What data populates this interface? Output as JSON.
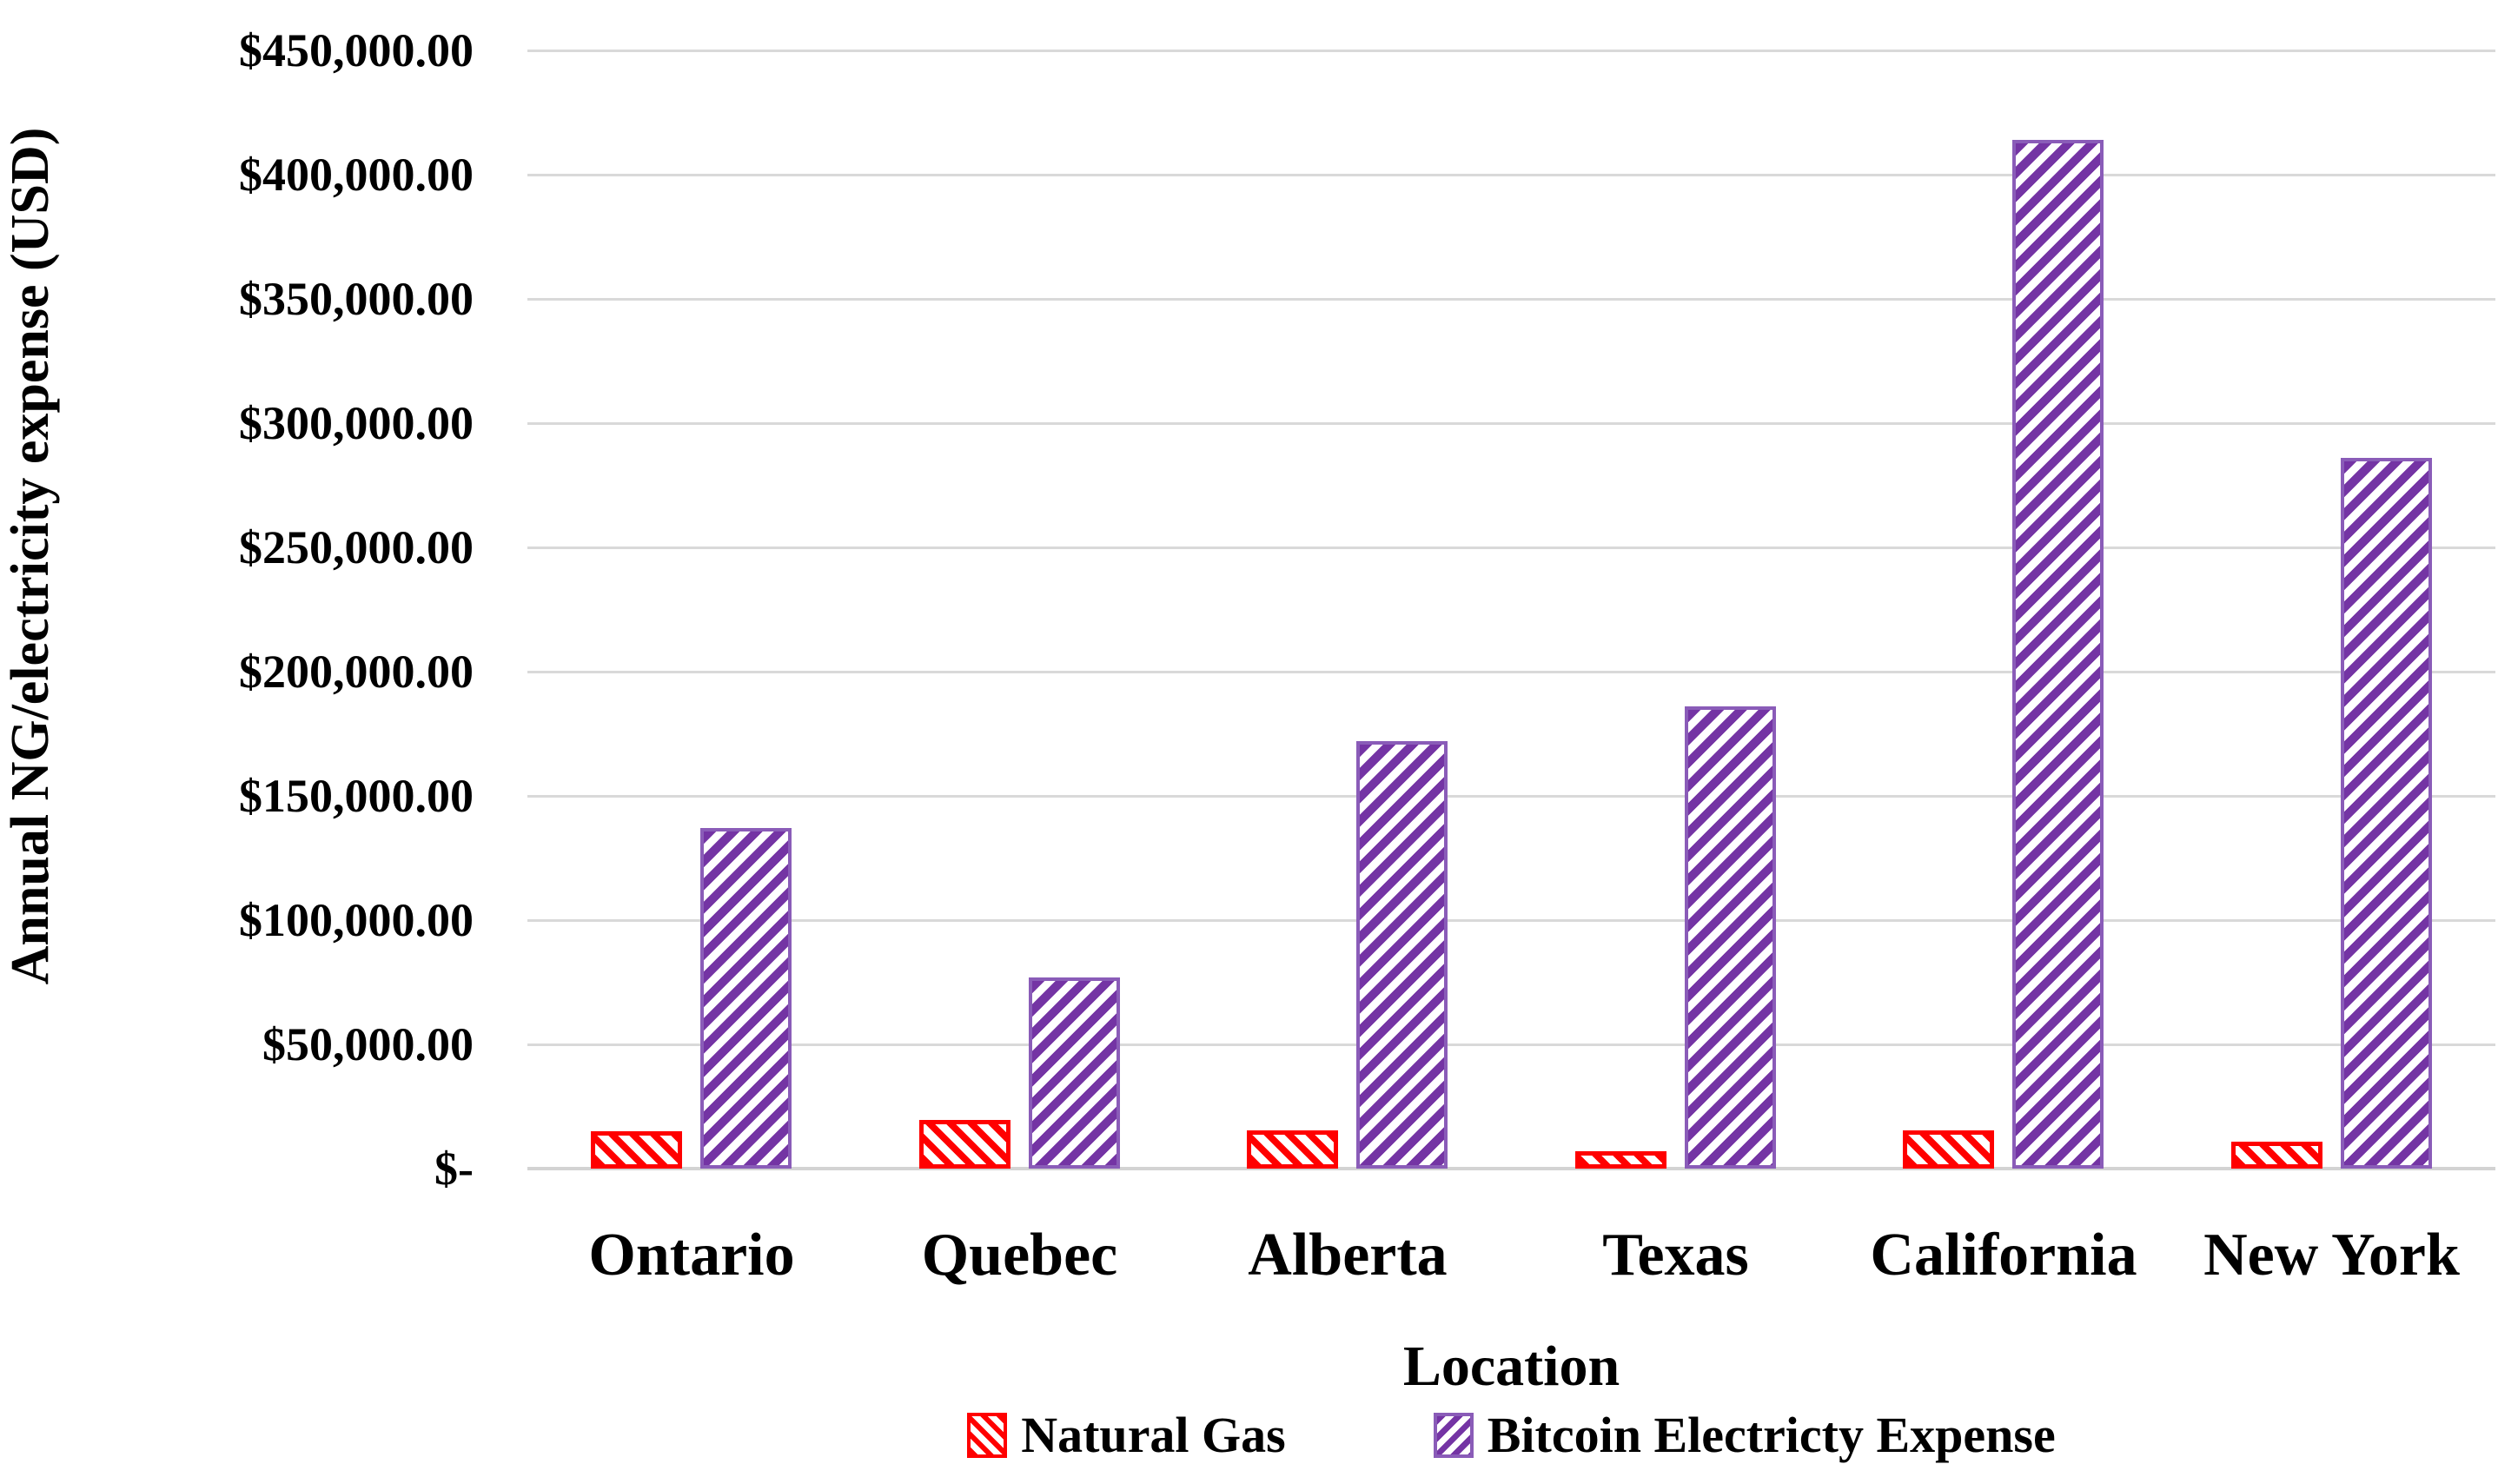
{
  "chart_data": {
    "type": "bar",
    "title": "",
    "xlabel": "Location",
    "ylabel": "Annual NG/electricity expense (USD)",
    "categories": [
      "Ontario",
      "Quebec",
      "Alberta",
      "Texas",
      "California",
      "New York"
    ],
    "series": [
      {
        "name": "Natural Gas",
        "color": "#ff0000",
        "hatch": "diagonal-down",
        "values": [
          15000,
          19500,
          15500,
          7000,
          15500,
          11000
        ]
      },
      {
        "name": "Bitcoin Electricty Expense",
        "color": "#7434a4",
        "hatch": "diagonal-up",
        "values": [
          137000,
          77000,
          172000,
          186000,
          414000,
          286000
        ]
      }
    ],
    "ylim": [
      0,
      450000
    ],
    "ytick_step": 50000,
    "ytick_labels": [
      "$-",
      "$50,000.00",
      "$100,000.00",
      "$150,000.00",
      "$200,000.00",
      "$250,000.00",
      "$300,000.00",
      "$350,000.00",
      "$400,000.00",
      "$450,000.00"
    ],
    "grid": "horizontal",
    "gridline_color": "#d9d9d9",
    "legend_position": "bottom"
  }
}
